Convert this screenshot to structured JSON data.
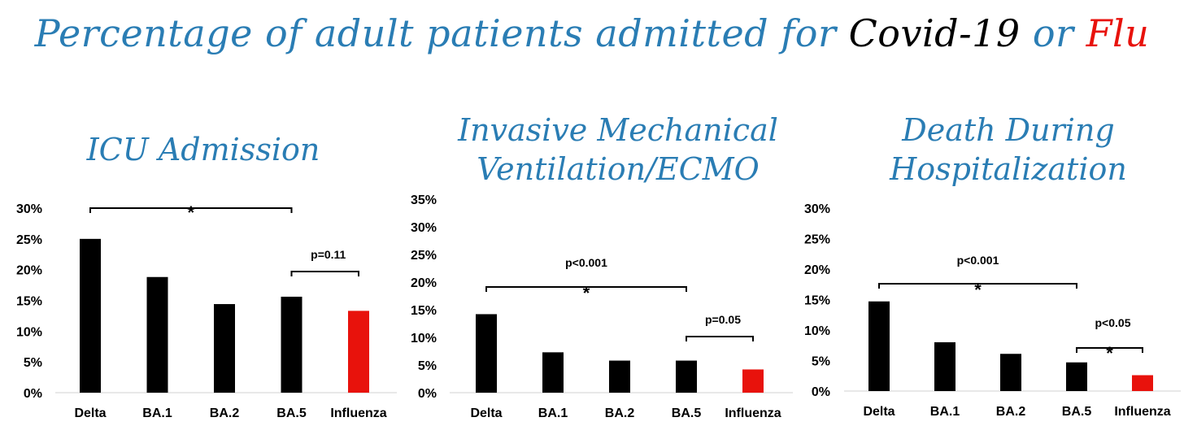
{
  "title": {
    "prefix": "Percentage of adult patients admitted for ",
    "covid": "Covid-19",
    "middle": " or ",
    "flu": "Flu"
  },
  "colors": {
    "title": "#2a7db4",
    "covid_bars": "#000000",
    "flu_bar": "#e8120c"
  },
  "chart_data": [
    {
      "type": "bar",
      "title": "ICU Admission",
      "categories": [
        "Delta",
        "BA.1",
        "BA.2",
        "BA.5",
        "Influenza"
      ],
      "values": [
        25,
        18.8,
        14.4,
        15.6,
        13.3
      ],
      "ylim": [
        0,
        30
      ],
      "yticks": [
        "0%",
        "5%",
        "10%",
        "15%",
        "20%",
        "25%",
        "30%"
      ],
      "annotations": [
        {
          "from": "Delta",
          "to": "BA.5",
          "label": "",
          "star": "*"
        },
        {
          "from": "BA.5",
          "to": "Influenza",
          "label": "p=0.11",
          "star": ""
        }
      ]
    },
    {
      "type": "bar",
      "title": "Invasive Mechanical Ventilation/ECMO",
      "title_lines": [
        "Invasive Mechanical",
        "Ventilation/ECMO"
      ],
      "categories": [
        "Delta",
        "BA.1",
        "BA.2",
        "BA.5",
        "Influenza"
      ],
      "values": [
        14.2,
        7.3,
        5.8,
        5.8,
        4.2
      ],
      "ylim": [
        0,
        35
      ],
      "yticks": [
        "0%",
        "5%",
        "10%",
        "15%",
        "20%",
        "25%",
        "30%",
        "35%"
      ],
      "annotations": [
        {
          "from": "Delta",
          "to": "BA.5",
          "label": "p<0.001",
          "star": "*"
        },
        {
          "from": "BA.5",
          "to": "Influenza",
          "label": "p=0.05",
          "star": ""
        }
      ]
    },
    {
      "type": "bar",
      "title": "Death During Hospitalization",
      "title_lines": [
        "Death During",
        "Hospitalization"
      ],
      "categories": [
        "Delta",
        "BA.1",
        "BA.2",
        "BA.5",
        "Influenza"
      ],
      "values": [
        14.7,
        8.0,
        6.1,
        4.7,
        2.6
      ],
      "ylim": [
        0,
        30
      ],
      "yticks": [
        "0%",
        "5%",
        "10%",
        "15%",
        "20%",
        "25%",
        "30%"
      ],
      "annotations": [
        {
          "from": "Delta",
          "to": "BA.5",
          "label": "p<0.001",
          "star": "*"
        },
        {
          "from": "BA.5",
          "to": "Influenza",
          "label": "p<0.05",
          "star": "*"
        }
      ]
    }
  ]
}
